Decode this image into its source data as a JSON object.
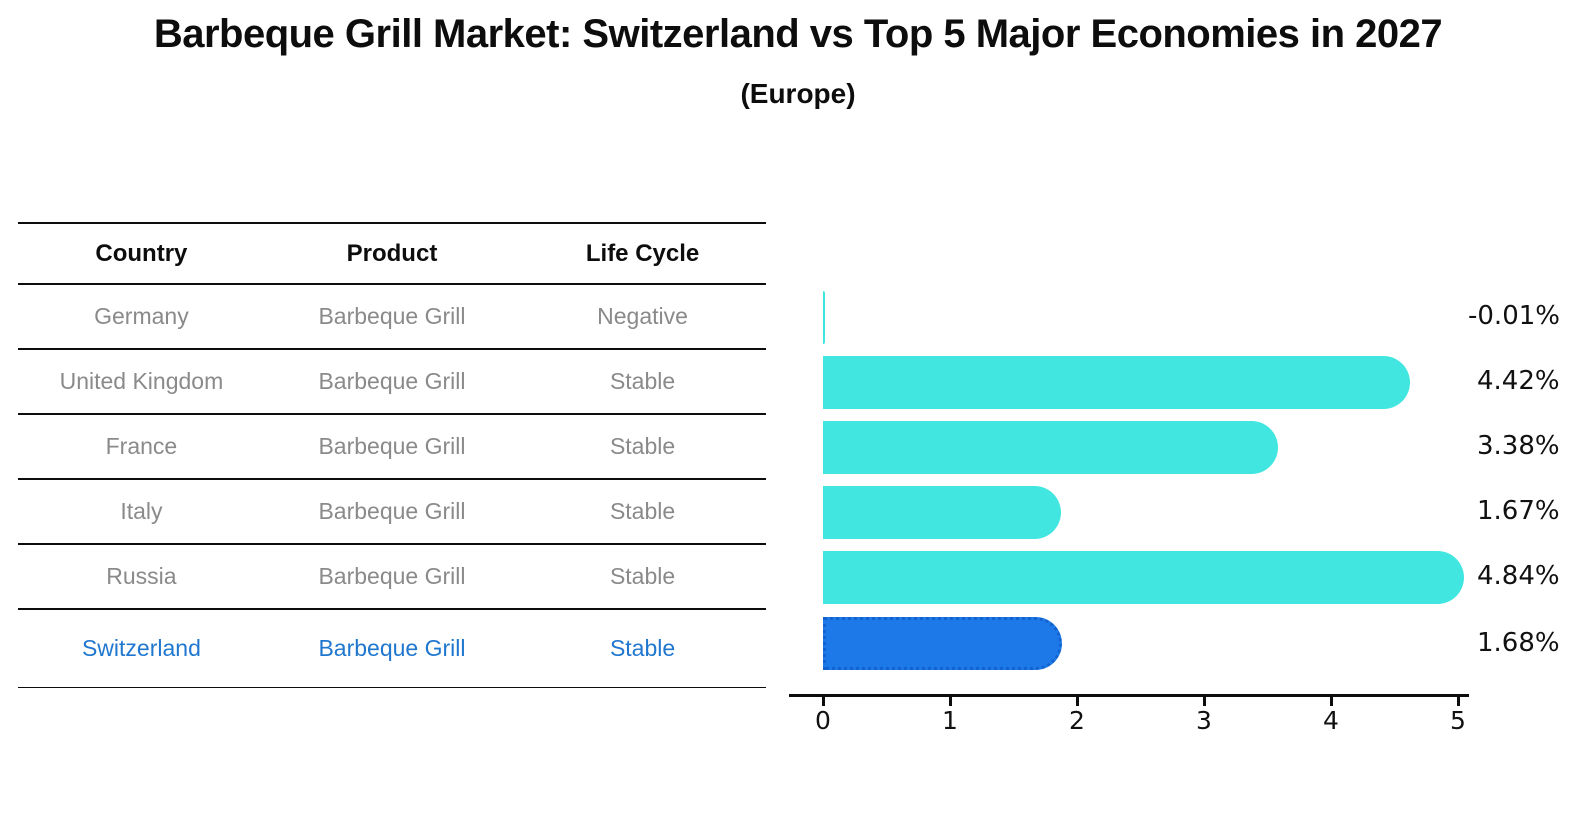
{
  "title": "Barbeque Grill Market: Switzerland vs Top 5 Major Economies in 2027",
  "subtitle": "(Europe)",
  "table": {
    "headers": [
      "Country",
      "Product",
      "Life Cycle"
    ],
    "rows": [
      {
        "country": "Germany",
        "product": "Barbeque Grill",
        "life_cycle": "Negative"
      },
      {
        "country": "United Kingdom",
        "product": "Barbeque Grill",
        "life_cycle": "Stable"
      },
      {
        "country": "France",
        "product": "Barbeque Grill",
        "life_cycle": "Stable"
      },
      {
        "country": "Italy",
        "product": "Barbeque Grill",
        "life_cycle": "Stable"
      },
      {
        "country": "Russia",
        "product": "Barbeque Grill",
        "life_cycle": "Stable"
      },
      {
        "country": "Switzerland",
        "product": "Barbeque Grill",
        "life_cycle": "Stable"
      }
    ],
    "highlight_row": "Switzerland"
  },
  "chart_data": {
    "type": "bar",
    "orientation": "horizontal",
    "categories": [
      "Germany",
      "United Kingdom",
      "France",
      "Italy",
      "Russia",
      "Switzerland"
    ],
    "values": [
      -0.01,
      4.42,
      3.38,
      1.67,
      4.84,
      1.68
    ],
    "value_labels": [
      "-0.01%",
      "4.42%",
      "3.38%",
      "1.67%",
      "4.84%",
      "1.68%"
    ],
    "xlim": [
      0,
      5
    ],
    "xticks": [
      "0",
      "1",
      "2",
      "3",
      "4",
      "5"
    ],
    "grid": false,
    "legend": false,
    "bar_color": "#42E6E0",
    "highlight_color": "#1D79E8",
    "highlight_index": 5
  },
  "colors": {
    "bar_cyan": "#42E6E0",
    "bar_blue": "#1D79E8",
    "highlight_text": "#1F77CF",
    "muted_text": "#8A8A8A",
    "text": "#111111"
  }
}
